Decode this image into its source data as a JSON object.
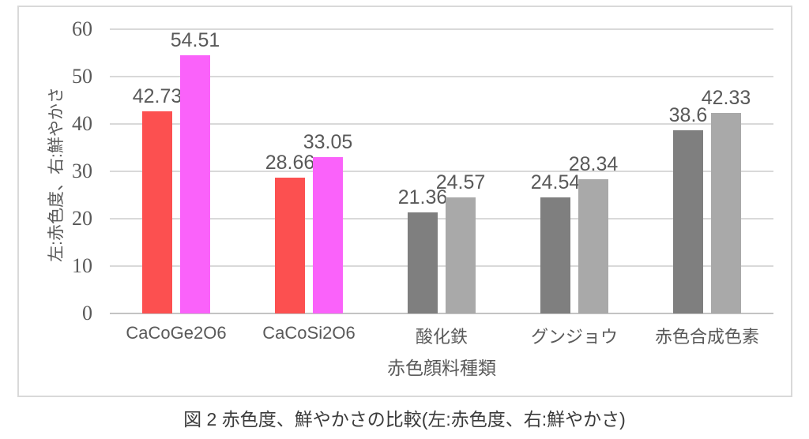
{
  "caption": "図 2 赤色度、鮮やかさの比較(左:赤色度、右:鮮やかさ)",
  "colors": {
    "red_bar": "#FC5050",
    "magenta_bar": "#FA62FA",
    "dark_gray_bar": "#7F7F7F",
    "light_gray_bar": "#A9A9A9",
    "gridline": "#D9D9D9",
    "axis_line": "#C3C3C3",
    "axis_text": "#595959"
  },
  "chart_data": {
    "type": "bar",
    "title": "",
    "xlabel": "赤色顔料種類",
    "ylabel": "左:赤色度、右:鮮やかさ",
    "ylim": [
      0,
      60
    ],
    "ytick_step": 10,
    "yticks": [
      0,
      10,
      20,
      30,
      40,
      50,
      60
    ],
    "grid": true,
    "legend": "none",
    "categories": [
      "CaCoGe2O6",
      "CaCoSi2O6",
      "酸化鉄",
      "グンジョウ",
      "赤色合成色素"
    ],
    "series": [
      {
        "name": "赤色度",
        "position": "left",
        "values": [
          42.73,
          28.66,
          21.36,
          24.54,
          38.6
        ],
        "colors": [
          "#FC5050",
          "#FC5050",
          "#7F7F7F",
          "#7F7F7F",
          "#7F7F7F"
        ]
      },
      {
        "name": "鮮やかさ",
        "position": "right",
        "values": [
          54.51,
          33.05,
          24.57,
          28.34,
          42.33
        ],
        "colors": [
          "#FA62FA",
          "#FA62FA",
          "#A9A9A9",
          "#A9A9A9",
          "#A9A9A9"
        ]
      }
    ],
    "data_labels_visible": true
  }
}
